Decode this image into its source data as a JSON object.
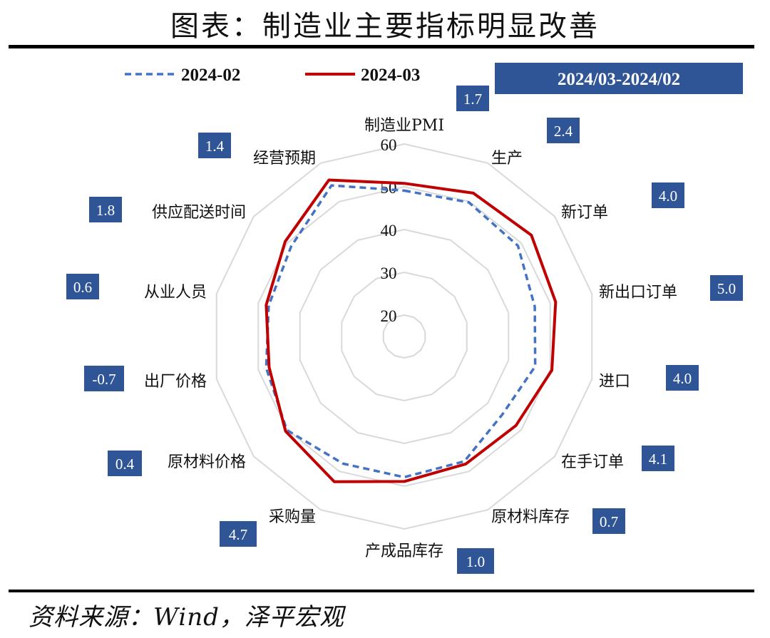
{
  "title": "图表：制造业主要指标明显改善",
  "source": "资料来源：Wind，泽平宏观",
  "colors": {
    "series_2024_02": "#4472C4",
    "series_2024_03": "#C00000",
    "badge": "#2F5597",
    "grid": "#D9D9D9"
  },
  "chart_data": {
    "type": "radar",
    "title": "",
    "diff_header": "2024/03-2024/02",
    "categories": [
      "制造业PMI",
      "生产",
      "新订单",
      "新出口订单",
      "进口",
      "在手订单",
      "原材料库存",
      "产成品库存",
      "采购量",
      "原材料价格",
      "出厂价格",
      "从业人员",
      "供应配送时间",
      "经营预期"
    ],
    "rlim": [
      15,
      60
    ],
    "ticks": [
      20,
      30,
      40,
      50,
      60
    ],
    "legend_position": "top-left",
    "series": [
      {
        "name": "2024-02",
        "style": "dashed",
        "values": [
          49.1,
          49.8,
          49.0,
          46.3,
          46.4,
          44.3,
          47.4,
          47.9,
          48.0,
          50.1,
          48.1,
          47.5,
          48.8,
          54.2
        ]
      },
      {
        "name": "2024-03",
        "style": "solid",
        "values": [
          50.8,
          52.2,
          53.0,
          51.3,
          50.4,
          48.4,
          48.1,
          48.9,
          52.7,
          50.5,
          47.4,
          48.1,
          50.6,
          55.6
        ]
      }
    ],
    "differences": [
      "1.7",
      "2.4",
      "4.0",
      "5.0",
      "4.0",
      "4.1",
      "0.7",
      "1.0",
      "4.7",
      "0.4",
      "-0.7",
      "0.6",
      "1.8",
      "1.4"
    ]
  }
}
